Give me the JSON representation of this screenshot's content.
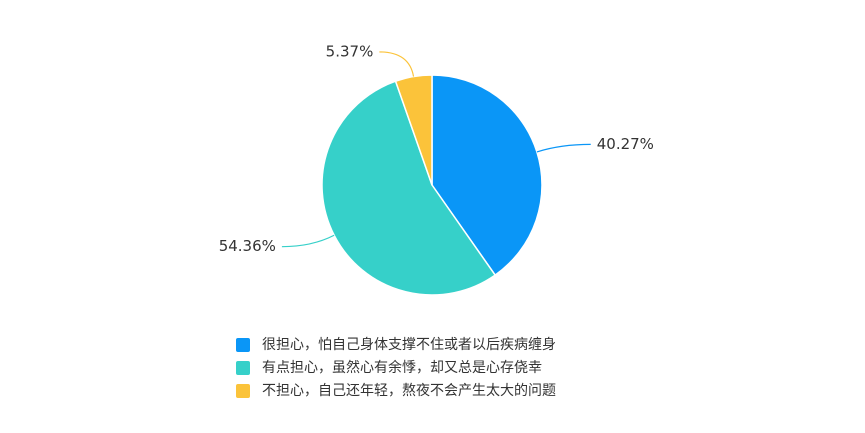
{
  "chart_data": {
    "type": "pie",
    "categories": [
      "很担心，怕自己身体支撑不住或者以后疾病缠身",
      "有点担心，虽然心有余悸，却又总是心存侥幸",
      "不担心，自己还年轻，熬夜不会产生太大的问题"
    ],
    "values": [
      40.27,
      54.36,
      5.37
    ],
    "value_labels": [
      "40.27%",
      "54.36%",
      "5.37%"
    ],
    "colors": [
      "#0a96f7",
      "#36d0c9",
      "#fbc33a"
    ]
  }
}
